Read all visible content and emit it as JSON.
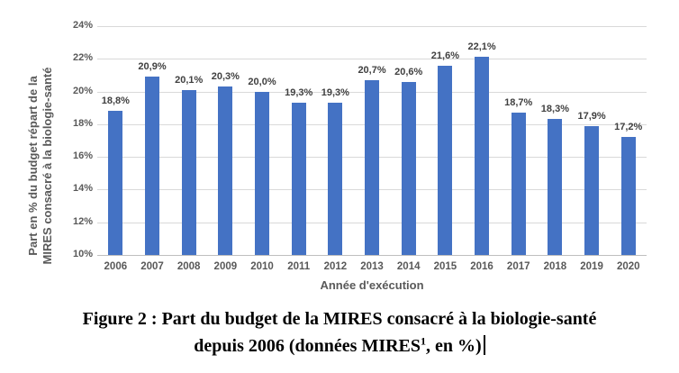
{
  "figure": {
    "y_axis_title_line1": "Part en % du budget répart de la",
    "y_axis_title_line2": "MIRES consacré à la biologie-santé"
  },
  "chart_data": {
    "type": "bar",
    "title": "",
    "xlabel": "Année d'exécution",
    "ylabel": "Part en % du budget répart de la MIRES consacré à la biologie-santé",
    "categories": [
      "2006",
      "2007",
      "2008",
      "2009",
      "2010",
      "2011",
      "2012",
      "2013",
      "2014",
      "2015",
      "2016",
      "2017",
      "2018",
      "2019",
      "2020"
    ],
    "values": [
      18.8,
      20.9,
      20.1,
      20.3,
      20.0,
      19.3,
      19.3,
      20.7,
      20.6,
      21.6,
      22.1,
      18.7,
      18.3,
      17.9,
      17.2
    ],
    "value_labels": [
      "18,8%",
      "20,9%",
      "20,1%",
      "20,3%",
      "20,0%",
      "19,3%",
      "19,3%",
      "20,7%",
      "20,6%",
      "21,6%",
      "22,1%",
      "18,7%",
      "18,3%",
      "17,9%",
      "17,2%"
    ],
    "ylim": [
      10,
      24
    ],
    "ytick_step": 2,
    "ytick_labels": [
      "10%",
      "12%",
      "14%",
      "16%",
      "18%",
      "20%",
      "22%",
      "24%"
    ],
    "grid": true,
    "legend": false
  },
  "colors": {
    "bar": "#4472c4",
    "gridline": "#d9d9d9",
    "axis_line": "#bfbfbf",
    "tick_text": "#595959",
    "data_label_text": "#404040"
  },
  "caption": {
    "line1": "Figure 2 : Part du budget de la MIRES consacré à la biologie-santé",
    "line2_prefix": "depuis 2006 (données MIRES",
    "line2_superscript": "1",
    "line2_suffix": ", en %)",
    "cursor_visible": true
  }
}
